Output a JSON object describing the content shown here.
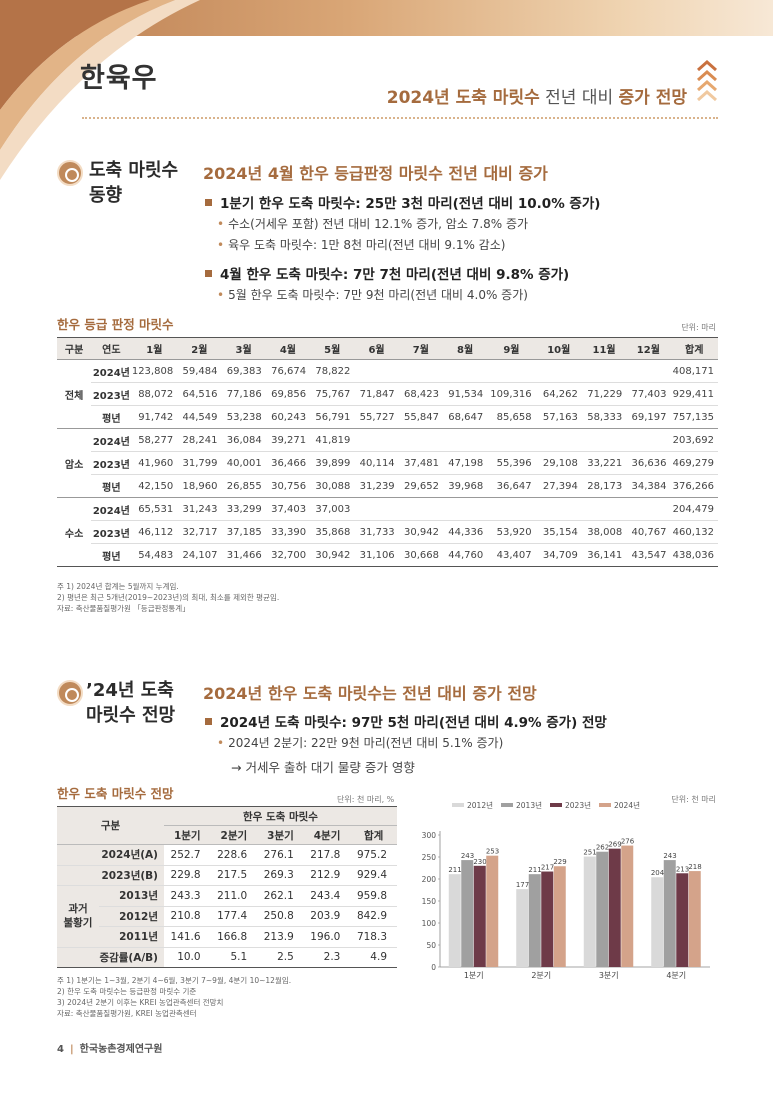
{
  "header": {
    "title": "한육우",
    "subtitle_a": "2024년 도축 마릿수",
    "subtitle_b": " 전년 대비 ",
    "subtitle_c": "증가 전망"
  },
  "section1": {
    "title_line1": "도축 마릿수",
    "title_line2": "동향",
    "heading": "2024년 4월 한우 등급판정 마릿수 전년 대비 증가",
    "bullets": [
      "1분기 한우 도축 마릿수: 25만 3천 마리(전년 대비 10.0% 증가)",
      "수소(거세우 포함) 전년 대비 12.1% 증가, 암소 7.8% 증가",
      "육우 도축 마릿수: 1만 8천 마리(전년 대비 9.1% 감소)",
      "4월 한우 도축 마릿수: 7만 7천 마리(전년 대비 9.8% 증가)",
      "5월 한우 도축 마릿수: 7만 9천 마리(전년 대비 4.0% 증가)"
    ]
  },
  "table1": {
    "title": "한우 등급 판정 마릿수",
    "unit": "단위: 마리",
    "headers": [
      "구분",
      "연도",
      "1월",
      "2월",
      "3월",
      "4월",
      "5월",
      "6월",
      "7월",
      "8월",
      "9월",
      "10월",
      "11월",
      "12월",
      "합계"
    ],
    "groups": [
      {
        "name": "전체",
        "rows": [
          {
            "year": "2024년",
            "values": [
              "123,808",
              "59,484",
              "69,383",
              "76,674",
              "78,822",
              "",
              "",
              "",
              "",
              "",
              "",
              "",
              "408,171"
            ]
          },
          {
            "year": "2023년",
            "values": [
              "88,072",
              "64,516",
              "77,186",
              "69,856",
              "75,767",
              "71,847",
              "68,423",
              "91,534",
              "109,316",
              "64,262",
              "71,229",
              "77,403",
              "929,411"
            ]
          },
          {
            "year": "평년",
            "values": [
              "91,742",
              "44,549",
              "53,238",
              "60,243",
              "56,791",
              "55,727",
              "55,847",
              "68,647",
              "85,658",
              "57,163",
              "58,333",
              "69,197",
              "757,135"
            ]
          }
        ]
      },
      {
        "name": "암소",
        "rows": [
          {
            "year": "2024년",
            "values": [
              "58,277",
              "28,241",
              "36,084",
              "39,271",
              "41,819",
              "",
              "",
              "",
              "",
              "",
              "",
              "",
              "203,692"
            ]
          },
          {
            "year": "2023년",
            "values": [
              "41,960",
              "31,799",
              "40,001",
              "36,466",
              "39,899",
              "40,114",
              "37,481",
              "47,198",
              "55,396",
              "29,108",
              "33,221",
              "36,636",
              "469,279"
            ]
          },
          {
            "year": "평년",
            "values": [
              "42,150",
              "18,960",
              "26,855",
              "30,756",
              "30,088",
              "31,239",
              "29,652",
              "39,968",
              "36,647",
              "27,394",
              "28,173",
              "34,384",
              "376,266"
            ]
          }
        ]
      },
      {
        "name": "수소",
        "rows": [
          {
            "year": "2024년",
            "values": [
              "65,531",
              "31,243",
              "33,299",
              "37,403",
              "37,003",
              "",
              "",
              "",
              "",
              "",
              "",
              "",
              "204,479"
            ]
          },
          {
            "year": "2023년",
            "values": [
              "46,112",
              "32,717",
              "37,185",
              "33,390",
              "35,868",
              "31,733",
              "30,942",
              "44,336",
              "53,920",
              "35,154",
              "38,008",
              "40,767",
              "460,132"
            ]
          },
          {
            "year": "평년",
            "values": [
              "54,483",
              "24,107",
              "31,466",
              "32,700",
              "30,942",
              "31,106",
              "30,668",
              "44,760",
              "43,407",
              "34,709",
              "36,141",
              "43,547",
              "438,036"
            ]
          }
        ]
      }
    ],
    "notes": [
      "주  1) 2024년 합계는 5월까지 누계임.",
      "      2) 평년은 최근 5개년(2019~2023년)의 최대, 최소를 제외한 평균임.",
      "자료: 축산물품질평가원 「등급판정통계」"
    ]
  },
  "section2": {
    "title_line1": "’24년 도축",
    "title_line2": "마릿수 전망",
    "heading": "2024년 한우 도축 마릿수는 전년 대비 증가 전망",
    "bullets": [
      "2024년 도축 마릿수: 97만 5천 마리(전년 대비 4.9% 증가) 전망",
      "2024년 2분기: 22만 9천 마리(전년 대비 5.1% 증가)",
      "→ 거세우 출하 대기 물량 증가 영향"
    ]
  },
  "table2": {
    "title": "한우 도축 마릿수 전망",
    "unit": "단위: 천 마리, %",
    "group_header": "한우 도축 마릿수",
    "col_label": "구분",
    "headers": [
      "1분기",
      "2분기",
      "3분기",
      "4분기",
      "합계"
    ],
    "rows": [
      {
        "label": "2024년(A)",
        "values": [
          "252.7",
          "228.6",
          "276.1",
          "217.8",
          "975.2"
        ]
      },
      {
        "label": "2023년(B)",
        "values": [
          "229.8",
          "217.5",
          "269.3",
          "212.9",
          "929.4"
        ]
      },
      {
        "label": "2013년",
        "values": [
          "243.3",
          "211.0",
          "262.1",
          "243.4",
          "959.8"
        ]
      },
      {
        "label": "2012년",
        "values": [
          "210.8",
          "177.4",
          "250.8",
          "203.9",
          "842.9"
        ]
      },
      {
        "label": "2011년",
        "values": [
          "141.6",
          "166.8",
          "213.9",
          "196.0",
          "718.3"
        ]
      },
      {
        "label": "증감률(A/B)",
        "values": [
          "10.0",
          "5.1",
          "2.5",
          "2.3",
          "4.9"
        ]
      }
    ],
    "past_group": "과거 불황기",
    "past_group_l1": "과거",
    "past_group_l2": "불황기",
    "notes": [
      "주  1) 1분기는 1~3월, 2분기 4~6월, 3분기 7~9월, 4분기 10~12월임.",
      "      2) 한우 도축 마릿수는 등급판정 마릿수 기준",
      "      3) 2024년 2분기 이후는 KREI 농업관측센터 전망치",
      "자료: 축산물품질평가원, KREI 농업관측센터"
    ]
  },
  "chart_data": {
    "type": "bar",
    "unit": "단위: 천 마리",
    "categories": [
      "1분기",
      "2분기",
      "3분기",
      "4분기"
    ],
    "series": [
      {
        "name": "2012년",
        "color": "#d9d9d9",
        "values": [
          211,
          177,
          251,
          204
        ]
      },
      {
        "name": "2013년",
        "color": "#a0a0a0",
        "values": [
          243,
          211,
          262,
          243
        ]
      },
      {
        "name": "2023년",
        "color": "#6e3a48",
        "values": [
          230,
          217,
          269,
          213
        ]
      },
      {
        "name": "2024년",
        "color": "#d4a38a",
        "values": [
          253,
          229,
          276,
          218
        ]
      }
    ],
    "ylim": [
      0,
      300
    ],
    "yticks": [
      0,
      50,
      100,
      150,
      200,
      250,
      300
    ],
    "legend": "top"
  },
  "footer": {
    "page_number": "4",
    "org": "한국농촌경제연구원"
  }
}
